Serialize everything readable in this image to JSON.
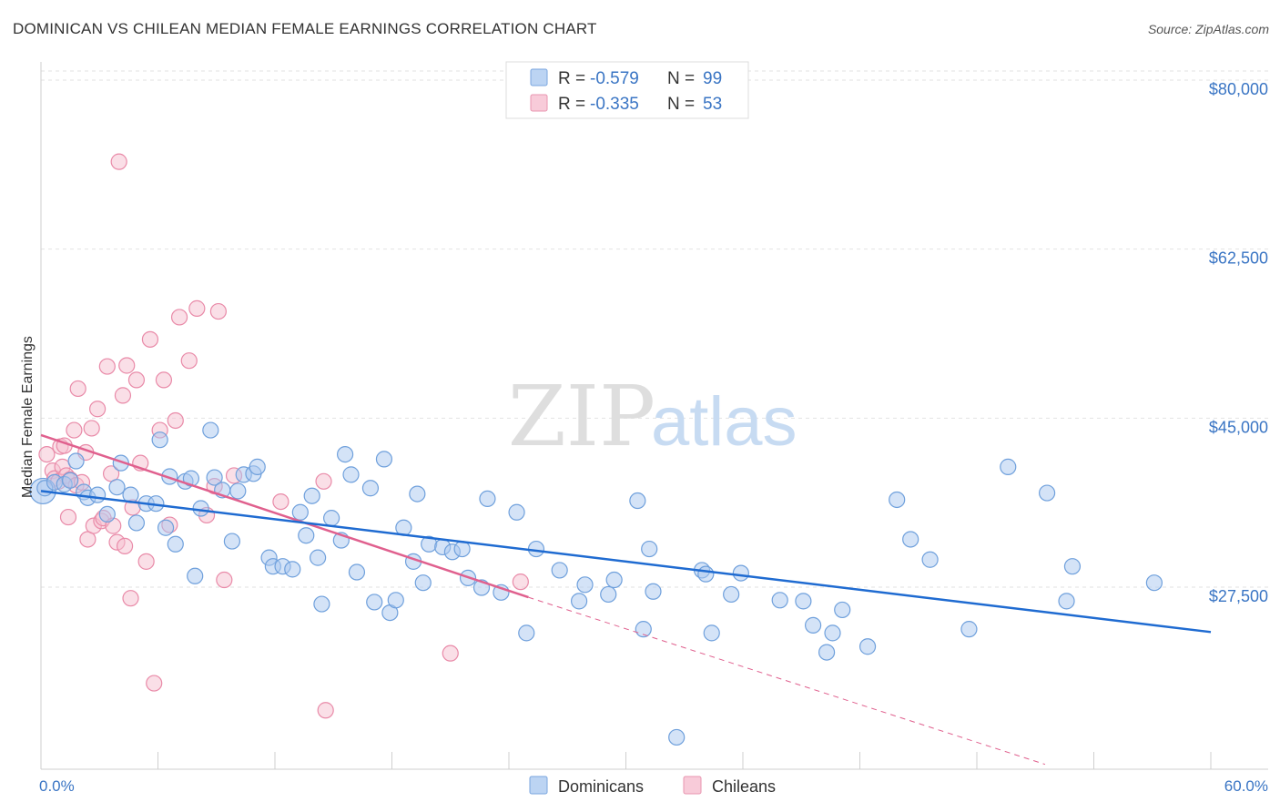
{
  "title": "DOMINICAN VS CHILEAN MEDIAN FEMALE EARNINGS CORRELATION CHART",
  "source": "Source: ZipAtlas.com",
  "watermark": {
    "zip": "ZIP",
    "atlas": "atlas"
  },
  "colors": {
    "dominicans_fill": "#a9c8f0",
    "dominicans_stroke": "#6fa0dc",
    "dominicans_line": "#1f6bd1",
    "chileans_fill": "#f6bfd0",
    "chileans_stroke": "#e98aa8",
    "chileans_line": "#e0608e",
    "axis_label": "#3a75c4",
    "grid": "#e2e2e2"
  },
  "legend": {
    "rows": [
      {
        "r_label": "R = ",
        "r_value": "-0.579",
        "n_label": "N = ",
        "n_value": "99"
      },
      {
        "r_label": "R = ",
        "r_value": "-0.335",
        "n_label": "N = ",
        "n_value": "53"
      }
    ]
  },
  "bottom_legend": [
    "Dominicans",
    "Chileans"
  ],
  "chart_data": {
    "type": "scatter",
    "title": "DOMINICAN VS CHILEAN MEDIAN FEMALE EARNINGS CORRELATION CHART",
    "xlabel": "",
    "ylabel": "Median Female Earnings",
    "xlim": [
      0,
      60
    ],
    "ylim": [
      10000,
      82000
    ],
    "x_tick_labels": [
      "0.0%",
      "60.0%"
    ],
    "y_ticks": [
      27500,
      45000,
      62500,
      80000
    ],
    "y_tick_labels": [
      "$27,500",
      "$45,000",
      "$62,500",
      "$80,000"
    ],
    "grid": true,
    "legend_position": "top-center",
    "series": [
      {
        "name": "Dominicans",
        "r": -0.579,
        "n": 99,
        "trend": {
          "x": [
            0,
            60
          ],
          "y": [
            38300,
            23700
          ]
        },
        "points": [
          [
            0.2,
            38.6
          ],
          [
            0.7,
            39.2
          ],
          [
            1.2,
            39.0
          ],
          [
            1.5,
            39.4
          ],
          [
            1.8,
            41.4
          ],
          [
            2.2,
            38.2
          ],
          [
            2.4,
            37.6
          ],
          [
            2.9,
            37.9
          ],
          [
            3.4,
            35.9
          ],
          [
            3.9,
            38.7
          ],
          [
            4.1,
            41.2
          ],
          [
            4.6,
            37.9
          ],
          [
            4.9,
            35.0
          ],
          [
            5.4,
            37.0
          ],
          [
            5.9,
            37.0
          ],
          [
            6.1,
            43.6
          ],
          [
            6.4,
            34.5
          ],
          [
            6.6,
            39.8
          ],
          [
            6.9,
            32.8
          ],
          [
            7.4,
            39.3
          ],
          [
            7.7,
            39.6
          ],
          [
            7.9,
            29.5
          ],
          [
            8.2,
            36.5
          ],
          [
            8.7,
            44.6
          ],
          [
            8.9,
            39.7
          ],
          [
            9.3,
            38.4
          ],
          [
            9.8,
            33.1
          ],
          [
            10.1,
            38.3
          ],
          [
            10.4,
            40.0
          ],
          [
            10.9,
            40.1
          ],
          [
            11.1,
            40.8
          ],
          [
            11.7,
            31.4
          ],
          [
            11.9,
            30.5
          ],
          [
            12.4,
            30.5
          ],
          [
            12.9,
            30.2
          ],
          [
            13.3,
            36.1
          ],
          [
            13.6,
            33.7
          ],
          [
            13.9,
            37.8
          ],
          [
            14.2,
            31.4
          ],
          [
            14.4,
            26.6
          ],
          [
            14.9,
            35.5
          ],
          [
            15.4,
            33.2
          ],
          [
            15.6,
            42.1
          ],
          [
            15.9,
            40.0
          ],
          [
            16.2,
            29.9
          ],
          [
            16.9,
            38.6
          ],
          [
            17.1,
            26.8
          ],
          [
            17.6,
            41.6
          ],
          [
            17.9,
            25.7
          ],
          [
            18.2,
            27.0
          ],
          [
            18.6,
            34.5
          ],
          [
            19.1,
            31.0
          ],
          [
            19.3,
            38.0
          ],
          [
            19.6,
            28.8
          ],
          [
            19.9,
            32.8
          ],
          [
            20.6,
            32.5
          ],
          [
            21.1,
            32.0
          ],
          [
            21.6,
            32.3
          ],
          [
            21.9,
            29.3
          ],
          [
            22.6,
            28.3
          ],
          [
            22.9,
            37.5
          ],
          [
            23.6,
            27.8
          ],
          [
            24.4,
            36.1
          ],
          [
            24.9,
            23.6
          ],
          [
            25.4,
            32.3
          ],
          [
            26.6,
            30.1
          ],
          [
            27.6,
            26.9
          ],
          [
            27.9,
            28.6
          ],
          [
            29.1,
            27.6
          ],
          [
            29.4,
            29.1
          ],
          [
            30.6,
            37.3
          ],
          [
            30.9,
            24.0
          ],
          [
            31.2,
            32.3
          ],
          [
            31.4,
            27.9
          ],
          [
            32.6,
            12.8
          ],
          [
            33.9,
            30.1
          ],
          [
            34.1,
            29.7
          ],
          [
            34.4,
            23.6
          ],
          [
            35.4,
            27.6
          ],
          [
            35.9,
            29.8
          ],
          [
            37.9,
            27.0
          ],
          [
            39.1,
            26.9
          ],
          [
            39.6,
            24.4
          ],
          [
            40.3,
            21.6
          ],
          [
            40.6,
            23.6
          ],
          [
            41.1,
            26.0
          ],
          [
            42.4,
            22.2
          ],
          [
            43.9,
            37.4
          ],
          [
            44.6,
            33.3
          ],
          [
            45.6,
            31.2
          ],
          [
            47.6,
            24.0
          ],
          [
            49.6,
            40.8
          ],
          [
            51.6,
            38.1
          ],
          [
            52.6,
            26.9
          ],
          [
            52.9,
            30.5
          ],
          [
            57.1,
            28.8
          ]
        ]
      },
      {
        "name": "Chileans",
        "r": -0.335,
        "n": 53,
        "trend": {
          "x": [
            0,
            25
          ],
          "y": [
            44100,
            27300
          ]
        },
        "trend_extension": {
          "x": [
            25,
            51.5
          ],
          "y": [
            27300,
            10000
          ]
        },
        "points": [
          [
            0.3,
            42.1
          ],
          [
            0.6,
            40.4
          ],
          [
            0.7,
            39.6
          ],
          [
            0.9,
            39.3
          ],
          [
            1.0,
            42.9
          ],
          [
            1.1,
            40.8
          ],
          [
            1.2,
            43.0
          ],
          [
            1.3,
            39.9
          ],
          [
            1.4,
            35.6
          ],
          [
            1.5,
            39.5
          ],
          [
            1.7,
            44.6
          ],
          [
            1.8,
            38.9
          ],
          [
            1.9,
            48.9
          ],
          [
            2.1,
            39.2
          ],
          [
            2.3,
            42.3
          ],
          [
            2.4,
            33.3
          ],
          [
            2.6,
            44.8
          ],
          [
            2.7,
            34.7
          ],
          [
            2.9,
            46.8
          ],
          [
            3.1,
            35.2
          ],
          [
            3.2,
            35.5
          ],
          [
            3.4,
            51.2
          ],
          [
            3.6,
            40.1
          ],
          [
            3.7,
            34.7
          ],
          [
            3.9,
            33.0
          ],
          [
            4.0,
            72.4
          ],
          [
            4.2,
            48.2
          ],
          [
            4.3,
            32.6
          ],
          [
            4.4,
            51.3
          ],
          [
            4.6,
            27.2
          ],
          [
            4.7,
            36.6
          ],
          [
            4.9,
            49.8
          ],
          [
            5.1,
            41.2
          ],
          [
            5.4,
            31.0
          ],
          [
            5.6,
            54.0
          ],
          [
            5.8,
            18.4
          ],
          [
            6.1,
            44.6
          ],
          [
            6.3,
            49.8
          ],
          [
            6.6,
            34.8
          ],
          [
            6.9,
            45.6
          ],
          [
            7.1,
            56.3
          ],
          [
            7.6,
            51.8
          ],
          [
            8.0,
            57.2
          ],
          [
            8.5,
            35.8
          ],
          [
            8.9,
            38.8
          ],
          [
            9.1,
            56.9
          ],
          [
            9.4,
            29.1
          ],
          [
            9.9,
            39.9
          ],
          [
            12.3,
            37.2
          ],
          [
            14.5,
            39.3
          ],
          [
            14.6,
            15.6
          ],
          [
            21.0,
            21.5
          ],
          [
            24.6,
            28.9
          ]
        ]
      }
    ]
  }
}
